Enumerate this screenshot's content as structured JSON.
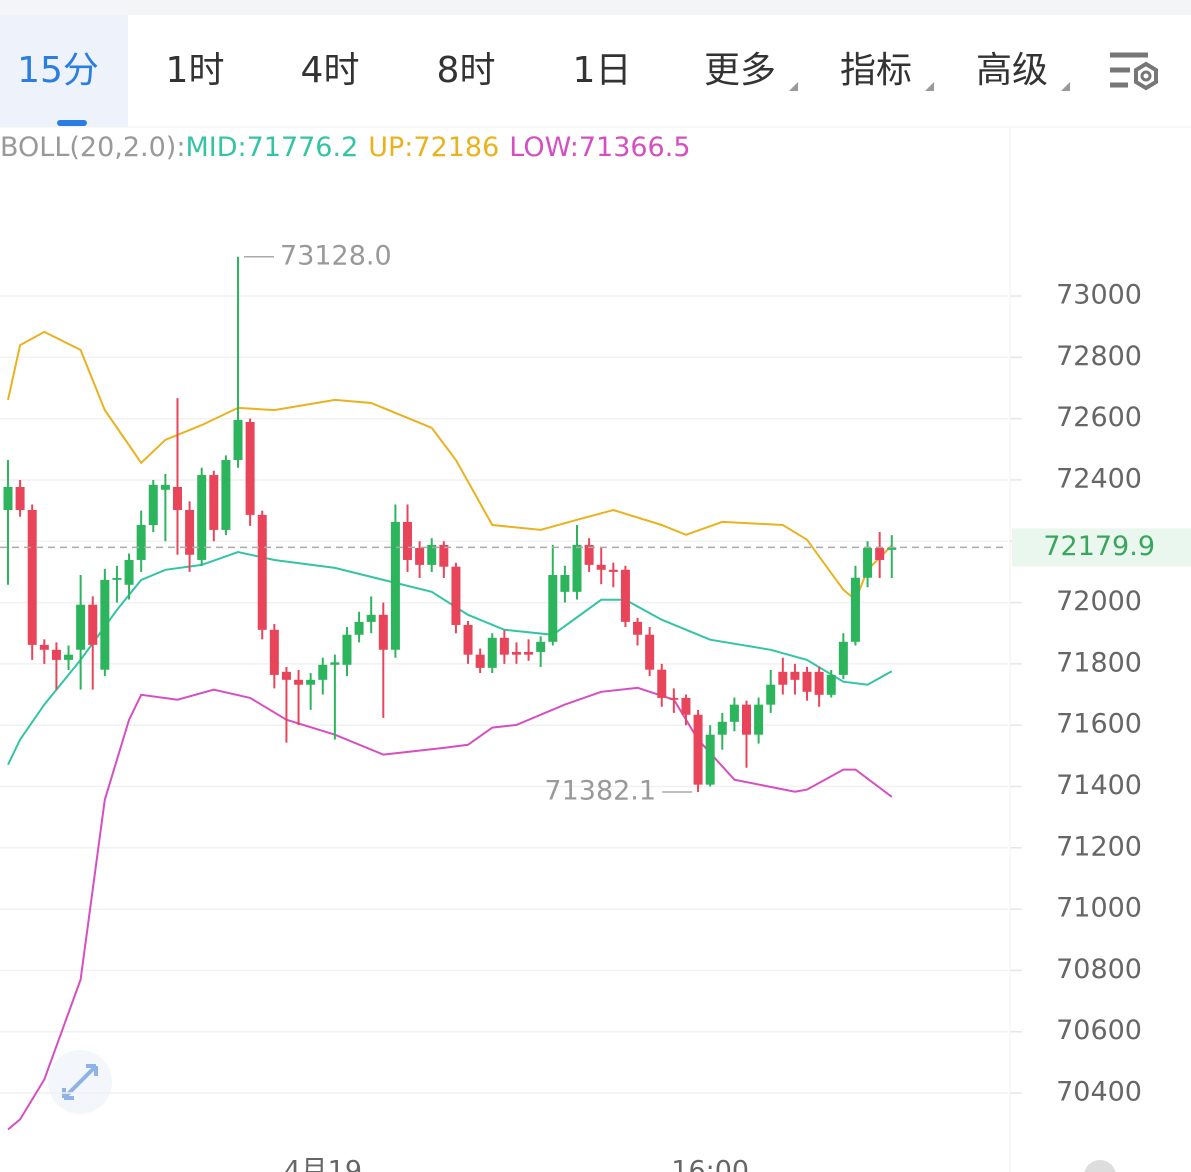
{
  "tabs": [
    "15分",
    "1时",
    "4时",
    "8时",
    "1日",
    "更多",
    "指标",
    "高级"
  ],
  "active_tab": 0,
  "chart_data": {
    "type": "candlestick",
    "up_color": "#2db55d",
    "down_color": "#e8455a",
    "xlim": [
      -0.66,
      82.6
    ],
    "xticks": [
      {
        "value": 26,
        "label": "4月19"
      },
      {
        "value": 58,
        "label": "16:00"
      }
    ],
    "ylim": [
      70220,
      73540
    ],
    "yticks": [
      70400,
      70600,
      70800,
      71000,
      71200,
      71400,
      71600,
      71800,
      72000,
      72200,
      72400,
      72600,
      72800,
      73000
    ],
    "grid": true,
    "open": [
      72302,
      72377,
      72302,
      71862,
      71846,
      71813,
      71846,
      71993,
      71781,
      72074,
      72058,
      72139,
      72253,
      72368,
      72377,
      72302,
      72139,
      72416,
      72237,
      72465,
      72589,
      72286,
      71911,
      71774,
      71748,
      71732,
      71748,
      71797,
      71797,
      71895,
      71937,
      71960,
      71846,
      72263,
      72178,
      72123,
      72188,
      72117,
      71927,
      71830,
      71787,
      71885,
      71839,
      71839,
      71839,
      71872,
      72035,
      72035,
      72188,
      72123,
      72107,
      72107,
      71937,
      71895,
      71781,
      71689,
      71689,
      71634,
      71406,
      71569,
      71611,
      71667,
      71569,
      71667,
      71774,
      71774,
      71774,
      71774,
      71699,
      71764,
      71872,
      72081,
      72178,
      72172
    ],
    "close": [
      72377,
      72302,
      71862,
      71846,
      71813,
      71830,
      71993,
      71862,
      72074,
      72080,
      72139,
      72253,
      72384,
      72384,
      72302,
      72156,
      72416,
      72237,
      72465,
      72596,
      72286,
      71911,
      71764,
      71748,
      71732,
      71748,
      71797,
      71805,
      71895,
      71937,
      71960,
      71846,
      72263,
      72139,
      72123,
      72188,
      72117,
      71927,
      71830,
      71787,
      71885,
      71830,
      71830,
      71830,
      71872,
      72090,
      72090,
      72188,
      72123,
      72107,
      72100,
      71937,
      71895,
      71781,
      71689,
      71683,
      71634,
      71406,
      71569,
      71611,
      71667,
      71569,
      71667,
      71732,
      71732,
      71748,
      71709,
      71699,
      71764,
      71872,
      72081,
      72178,
      72139,
      72179.9
    ],
    "high": [
      72465,
      72400,
      72320,
      71880,
      71870,
      71860,
      72090,
      72020,
      72110,
      72120,
      72160,
      72300,
      72400,
      72420,
      72667,
      72330,
      72440,
      72430,
      72480,
      73128,
      72600,
      72300,
      71930,
      71790,
      71780,
      71770,
      71820,
      71830,
      71920,
      71970,
      72020,
      72000,
      72320,
      72320,
      72200,
      72210,
      72200,
      72130,
      71940,
      71850,
      71900,
      71910,
      71870,
      71880,
      71890,
      72188,
      72120,
      72253,
      72210,
      72180,
      72130,
      72120,
      71950,
      71920,
      71800,
      71720,
      71700,
      71650,
      71600,
      71640,
      71690,
      71680,
      71690,
      71780,
      71820,
      71800,
      71790,
      71790,
      71780,
      71900,
      72120,
      72200,
      72230,
      72220
    ],
    "low": [
      72058,
      72280,
      71813,
      71800,
      71716,
      71780,
      71716,
      71716,
      71760,
      72000,
      72010,
      72100,
      72230,
      72200,
      72156,
      72100,
      72120,
      72200,
      72220,
      72440,
      72250,
      71880,
      71720,
      71543,
      71600,
      71650,
      71700,
      71553,
      71760,
      71870,
      71900,
      71624,
      71820,
      72100,
      72080,
      72100,
      72080,
      71900,
      71800,
      71770,
      71770,
      71800,
      71800,
      71810,
      71790,
      71860,
      72000,
      72010,
      72100,
      72060,
      72050,
      71920,
      71860,
      71760,
      71660,
      71640,
      71600,
      71382.1,
      71400,
      71520,
      71580,
      71461,
      71540,
      71640,
      71700,
      71700,
      71680,
      71660,
      71690,
      71750,
      71860,
      72050,
      72080,
      72080
    ],
    "annotations": [
      {
        "candle": 19,
        "field": "high",
        "label": "73128.0",
        "side": "right"
      },
      {
        "candle": 57,
        "field": "low",
        "label": "71382.1",
        "side": "left"
      }
    ],
    "indicator": {
      "label": "BOLL(20,2.0):",
      "lines": [
        {
          "name": "MID:",
          "color": "#33c4a4",
          "x": [
            0,
            1,
            3,
            6,
            9,
            11,
            13,
            16,
            19,
            22,
            27,
            31,
            35,
            38,
            41,
            45,
            49,
            51,
            54,
            58,
            63,
            66,
            69,
            71,
            73
          ],
          "values": [
            71471,
            71553,
            71667,
            71813,
            71976,
            72074,
            72107,
            72123,
            72165,
            72139,
            72113,
            72074,
            72035,
            71960,
            71911,
            71895,
            72009,
            72009,
            71944,
            71879,
            71846,
            71813,
            71742,
            71732,
            71776.2
          ]
        },
        {
          "name": "UP:",
          "color": "#e9b21f",
          "x": [
            0,
            1,
            3,
            6,
            8,
            11,
            13,
            16,
            19,
            22,
            27,
            30,
            35,
            37,
            40,
            44,
            47,
            50,
            54,
            56,
            59,
            64,
            66,
            69,
            70,
            71,
            73
          ],
          "values": [
            72661,
            72840,
            72883,
            72824,
            72628,
            72456,
            72531,
            72579,
            72635,
            72628,
            72661,
            72651,
            72570,
            72465,
            72253,
            72237,
            72270,
            72302,
            72253,
            72221,
            72263,
            72253,
            72205,
            72042,
            72009,
            72107,
            72186
          ]
        },
        {
          "name": "LOW:",
          "color": "#d64fc0",
          "x": [
            0,
            1,
            3,
            6,
            8,
            10,
            11,
            14,
            17,
            20,
            23,
            27,
            31,
            36,
            38,
            40,
            42,
            46,
            49,
            52,
            55,
            57,
            60,
            65,
            66,
            69,
            70,
            73
          ],
          "values": [
            70281,
            70314,
            70444,
            70770,
            71357,
            71618,
            71699,
            71683,
            71716,
            71689,
            71618,
            71569,
            71504,
            71526,
            71536,
            71592,
            71601,
            71667,
            71709,
            71722,
            71683,
            71553,
            71422,
            71383,
            71390,
            71455,
            71455,
            71366.5
          ]
        }
      ]
    }
  }
}
